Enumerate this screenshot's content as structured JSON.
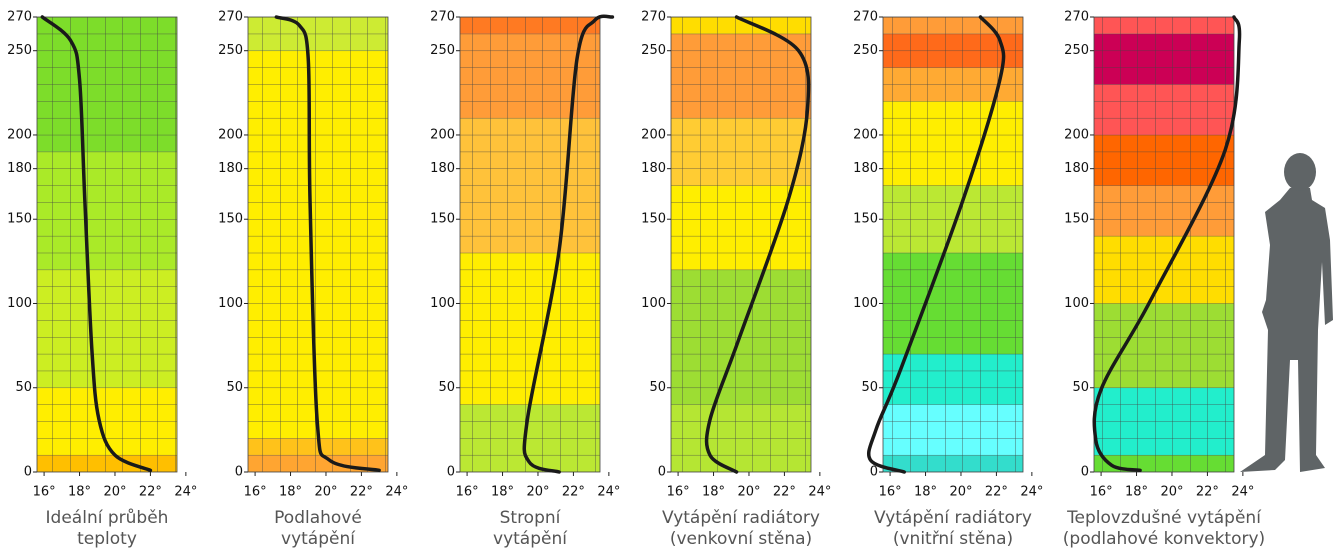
{
  "chart_data": [
    {
      "type": "line",
      "title": "Ideální průběh\nteploty",
      "color": "#1a1a1a",
      "x": [
        15.9,
        17.5,
        18.0,
        18.3,
        18.7,
        19.1,
        20.0,
        22.0
      ],
      "values": [
        270,
        256,
        233,
        161,
        72,
        31,
        10,
        1
      ],
      "bands": [
        {
          "from": 0,
          "to": 10,
          "color": "#ffbf00"
        },
        {
          "from": 10,
          "to": 50,
          "color": "#ffee00"
        },
        {
          "from": 50,
          "to": 120,
          "color": "#ccee22"
        },
        {
          "from": 120,
          "to": 190,
          "color": "#aaea28"
        },
        {
          "from": 190,
          "to": 270,
          "color": "#7ddd2a"
        }
      ],
      "xlim": [
        15.6,
        23.5
      ],
      "ylim": [
        0,
        270
      ],
      "xticks": [
        {
          "value": 16,
          "label": "16°"
        },
        {
          "value": 18,
          "label": "18°"
        },
        {
          "value": 20,
          "label": "20°"
        },
        {
          "value": 22,
          "label": "22°"
        },
        {
          "value": 24,
          "label": "24°"
        }
      ],
      "yticks": [
        0,
        50,
        100,
        150,
        180,
        200,
        250,
        270
      ],
      "grid": true
    },
    {
      "type": "line",
      "title": "Podlahové\nvytápění",
      "color": "#1a1a1a",
      "x": [
        17.2,
        18.5,
        19.0,
        19.1,
        19.5,
        20.2,
        23.0
      ],
      "values": [
        270,
        265,
        245,
        161,
        31,
        7,
        1
      ],
      "bands": [
        {
          "from": 0,
          "to": 10,
          "color": "#ffa531"
        },
        {
          "from": 10,
          "to": 20,
          "color": "#ffc21a"
        },
        {
          "from": 20,
          "to": 250,
          "color": "#ffee00"
        },
        {
          "from": 250,
          "to": 270,
          "color": "#cdeb33"
        }
      ],
      "xlim": [
        15.6,
        23.5
      ],
      "ylim": [
        0,
        270
      ],
      "xticks": [
        {
          "value": 16,
          "label": "16°"
        },
        {
          "value": 18,
          "label": "18°"
        },
        {
          "value": 20,
          "label": "20°"
        },
        {
          "value": 22,
          "label": "22°"
        },
        {
          "value": 24,
          "label": "24°"
        }
      ],
      "yticks": [
        0,
        50,
        100,
        150,
        180,
        200,
        250,
        270
      ],
      "grid": true
    },
    {
      "type": "line",
      "title": "Stropní\nvytápění",
      "color": "#1a1a1a",
      "x": [
        24.2,
        23.2,
        22.2,
        21.2,
        19.4,
        19.5,
        21.2
      ],
      "values": [
        270,
        268,
        245,
        132,
        31,
        6,
        0
      ],
      "bands": [
        {
          "from": 0,
          "to": 40,
          "color": "#bbe833"
        },
        {
          "from": 40,
          "to": 130,
          "color": "#ffee00"
        },
        {
          "from": 130,
          "to": 210,
          "color": "#ffc23a"
        },
        {
          "from": 210,
          "to": 260,
          "color": "#ff9c38"
        },
        {
          "from": 260,
          "to": 270,
          "color": "#ff7a22"
        }
      ],
      "xlim": [
        15.6,
        23.5
      ],
      "ylim": [
        0,
        270
      ],
      "xticks": [
        {
          "value": 16,
          "label": "16°"
        },
        {
          "value": 18,
          "label": "18°"
        },
        {
          "value": 20,
          "label": "20°"
        },
        {
          "value": 22,
          "label": "22°"
        },
        {
          "value": 24,
          "label": "24°"
        }
      ],
      "yticks": [
        0,
        50,
        100,
        150,
        180,
        200,
        250,
        270
      ],
      "grid": true
    },
    {
      "type": "line",
      "title": "Vytápění radiátory\n(venkovní stěna)",
      "color": "#1a1a1a",
      "x": [
        19.3,
        22.8,
        23.3,
        22.2,
        19.4,
        17.8,
        17.8,
        19.3
      ],
      "values": [
        270,
        250,
        215,
        161,
        78,
        31,
        10,
        0
      ],
      "bands": [
        {
          "from": 0,
          "to": 40,
          "color": "#b5e633"
        },
        {
          "from": 40,
          "to": 120,
          "color": "#9ddd33"
        },
        {
          "from": 120,
          "to": 170,
          "color": "#ffee00"
        },
        {
          "from": 170,
          "to": 210,
          "color": "#ffcc33"
        },
        {
          "from": 210,
          "to": 260,
          "color": "#ff9c38"
        },
        {
          "from": 260,
          "to": 270,
          "color": "#ffdd00"
        }
      ],
      "xlim": [
        15.6,
        23.5
      ],
      "ylim": [
        0,
        270
      ],
      "xticks": [
        {
          "value": 16,
          "label": "16°"
        },
        {
          "value": 18,
          "label": "18°"
        },
        {
          "value": 20,
          "label": "20°"
        },
        {
          "value": 22,
          "label": "22°"
        },
        {
          "value": 24,
          "label": "24°"
        }
      ],
      "yticks": [
        0,
        50,
        100,
        150,
        180,
        200,
        250,
        270
      ],
      "grid": true
    },
    {
      "type": "line",
      "title": "Vytápění radiátory\n(vnitřní stěna)",
      "color": "#1a1a1a",
      "x": [
        21.1,
        22.2,
        22.2,
        20.1,
        16.6,
        15.2,
        14.9,
        16.8
      ],
      "values": [
        270,
        256,
        233,
        161,
        61,
        25,
        7,
        0
      ],
      "bands": [
        {
          "from": 0,
          "to": 10,
          "color": "#33ddcc"
        },
        {
          "from": 10,
          "to": 40,
          "color": "#66ffff"
        },
        {
          "from": 40,
          "to": 70,
          "color": "#22eecc"
        },
        {
          "from": 70,
          "to": 130,
          "color": "#66dd33"
        },
        {
          "from": 130,
          "to": 170,
          "color": "#bbe833"
        },
        {
          "from": 170,
          "to": 220,
          "color": "#ffee00"
        },
        {
          "from": 220,
          "to": 240,
          "color": "#ffaa33"
        },
        {
          "from": 240,
          "to": 260,
          "color": "#ff6a1a"
        },
        {
          "from": 260,
          "to": 270,
          "color": "#ff9c38"
        }
      ],
      "xlim": [
        15.6,
        23.5
      ],
      "ylim": [
        0,
        270
      ],
      "xticks": [
        {
          "value": 16,
          "label": "16°"
        },
        {
          "value": 18,
          "label": "18°"
        },
        {
          "value": 20,
          "label": "20°"
        },
        {
          "value": 22,
          "label": "22°"
        },
        {
          "value": 24,
          "label": "24°"
        }
      ],
      "yticks": [
        0,
        50,
        100,
        150,
        180,
        200,
        250,
        270
      ],
      "grid": true
    },
    {
      "type": "line",
      "title": "Teplovzdušné vytápění\n(podlahové konvektory)",
      "color": "#1a1a1a",
      "x": [
        23.5,
        23.8,
        23.0,
        18.8,
        16.0,
        15.7,
        16.6,
        18.2
      ],
      "values": [
        270,
        256,
        191,
        102,
        49,
        19,
        4,
        1
      ],
      "bands": [
        {
          "from": 0,
          "to": 10,
          "color": "#66dd33"
        },
        {
          "from": 10,
          "to": 50,
          "color": "#22eecc"
        },
        {
          "from": 50,
          "to": 100,
          "color": "#9ddd33"
        },
        {
          "from": 100,
          "to": 140,
          "color": "#ffdd00"
        },
        {
          "from": 140,
          "to": 170,
          "color": "#ff9c38"
        },
        {
          "from": 170,
          "to": 200,
          "color": "#ff6600"
        },
        {
          "from": 200,
          "to": 230,
          "color": "#ff5555"
        },
        {
          "from": 230,
          "to": 260,
          "color": "#cc0055"
        },
        {
          "from": 260,
          "to": 270,
          "color": "#ff5555"
        }
      ],
      "xlim": [
        15.6,
        23.5
      ],
      "ylim": [
        0,
        270
      ],
      "xticks": [
        {
          "value": 16,
          "label": "16°"
        },
        {
          "value": 18,
          "label": "18°"
        },
        {
          "value": 20,
          "label": "20°"
        },
        {
          "value": 22,
          "label": "22°"
        },
        {
          "value": 24,
          "label": "24°"
        }
      ],
      "yticks": [
        0,
        50,
        100,
        150,
        180,
        200,
        250,
        270
      ],
      "grid": true
    }
  ]
}
